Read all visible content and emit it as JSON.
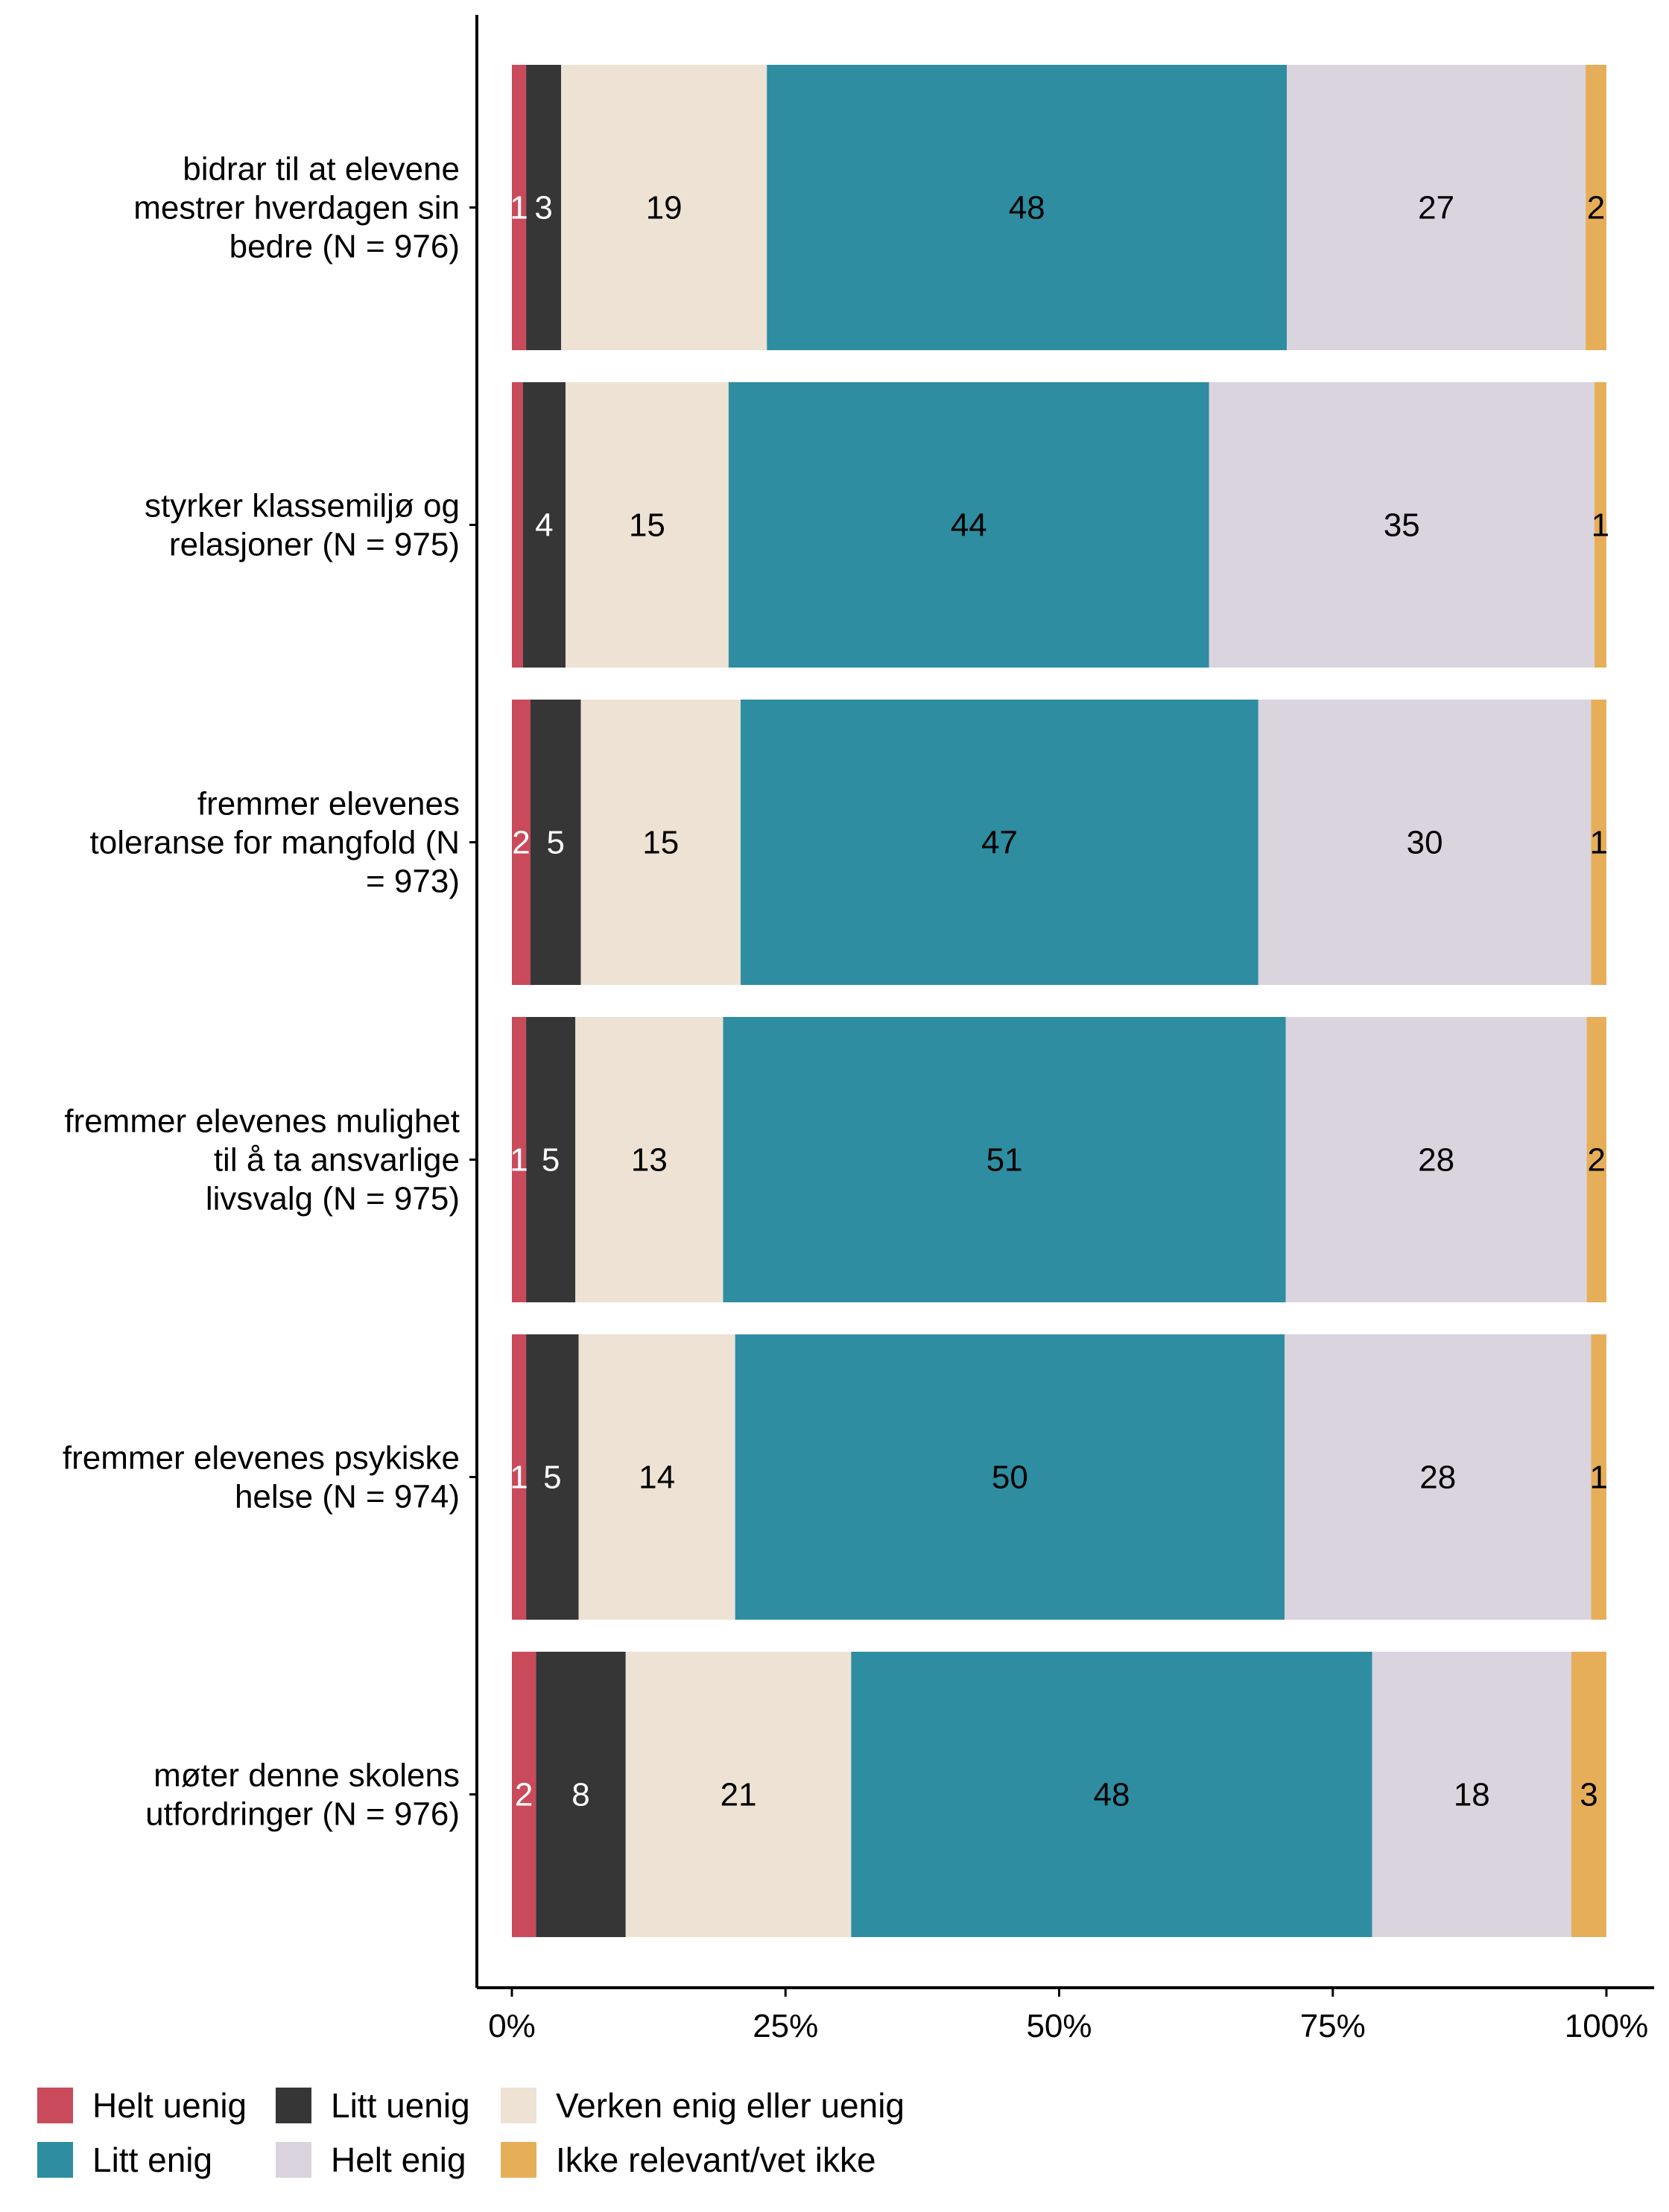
{
  "chart_data": {
    "type": "bar",
    "orientation": "horizontal",
    "stacked": "percent",
    "categories": [
      [
        "bidrar til at elevene",
        "mestrer hverdagen sin",
        "bedre (N = 976)"
      ],
      [
        "styrker klassemiljø og",
        "relasjoner (N = 975)"
      ],
      [
        "fremmer elevenes",
        "toleranse for mangfold (N",
        "= 973)"
      ],
      [
        "fremmer elevenes mulighet",
        "til å ta ansvarlige",
        "livsvalg (N = 975)"
      ],
      [
        "fremmer elevenes psykiske",
        "helse (N = 974)"
      ],
      [
        "møter denne skolens",
        "utfordringer (N = 976)"
      ]
    ],
    "series": [
      {
        "name": "Helt uenig",
        "color": "#c94a5a",
        "label_color": "#ffffff",
        "values": [
          1.3,
          1.0,
          1.7,
          1.3,
          1.3,
          2.2
        ]
      },
      {
        "name": "Litt uenig",
        "color": "#363636",
        "label_color": "#ffffff",
        "values": [
          3.2,
          3.9,
          4.6,
          4.5,
          4.8,
          8.2
        ]
      },
      {
        "name": "Verken enig eller uenig",
        "color": "#ede2d3",
        "label_color": "#000000",
        "values": [
          18.8,
          14.9,
          14.6,
          13.5,
          14.3,
          20.6
        ]
      },
      {
        "name": "Litt enig",
        "color": "#2e8da0",
        "label_color": "#000000",
        "values": [
          47.5,
          43.9,
          47.3,
          51.4,
          50.2,
          47.6
        ]
      },
      {
        "name": "Helt enig",
        "color": "#dad4df",
        "label_color": "#000000",
        "values": [
          27.3,
          35.2,
          30.4,
          27.5,
          28.0,
          18.2
        ]
      },
      {
        "name": "Ikke relevant/vet ikke",
        "color": "#e7ae5a",
        "label_color": "#000000",
        "values": [
          1.9,
          1.1,
          1.4,
          1.8,
          1.4,
          3.2
        ]
      }
    ],
    "data_labels": [
      [
        "1",
        "3",
        "19",
        "48",
        "27",
        "2"
      ],
      [
        "",
        "4",
        "15",
        "44",
        "35",
        "1"
      ],
      [
        "2",
        "5",
        "15",
        "47",
        "30",
        "1"
      ],
      [
        "1",
        "5",
        "13",
        "51",
        "28",
        "2"
      ],
      [
        "1",
        "5",
        "14",
        "50",
        "28",
        "1"
      ],
      [
        "2",
        "8",
        "21",
        "48",
        "18",
        "3"
      ]
    ],
    "xlim": [
      0,
      1
    ],
    "xticks": [
      0,
      0.25,
      0.5,
      0.75,
      1
    ],
    "xtick_labels": [
      "0%",
      "25%",
      "50%",
      "75%",
      "100%"
    ],
    "title": "",
    "xlabel": "",
    "ylabel": "",
    "legend_position": "bottom",
    "legend_rows": [
      [
        "Helt uenig",
        "Litt uenig",
        "Verken enig eller uenig"
      ],
      [
        "Litt enig",
        "Helt enig",
        "Ikke relevant/vet ikke"
      ]
    ],
    "grid": false
  }
}
